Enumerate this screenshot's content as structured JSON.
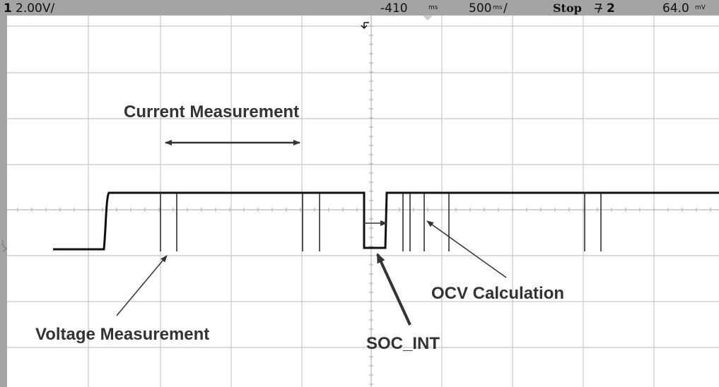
{
  "header": {
    "channel": "1",
    "scale": "2.00V/",
    "delay": "-410",
    "delay_unit": "ms",
    "timebase": "500",
    "timebase_unit": "ms",
    "timebase_suffix": "/",
    "run_state": "Stop",
    "trigger_channel": "2",
    "trigger_level": "64.0",
    "trigger_level_unit": "mV"
  },
  "screen": {
    "ground_marker": "1"
  },
  "annotations": {
    "current": "Current Measurement",
    "voltage": "Voltage Measurement",
    "soc": "SOC_INT",
    "ocv": "OCV Calculation"
  }
}
